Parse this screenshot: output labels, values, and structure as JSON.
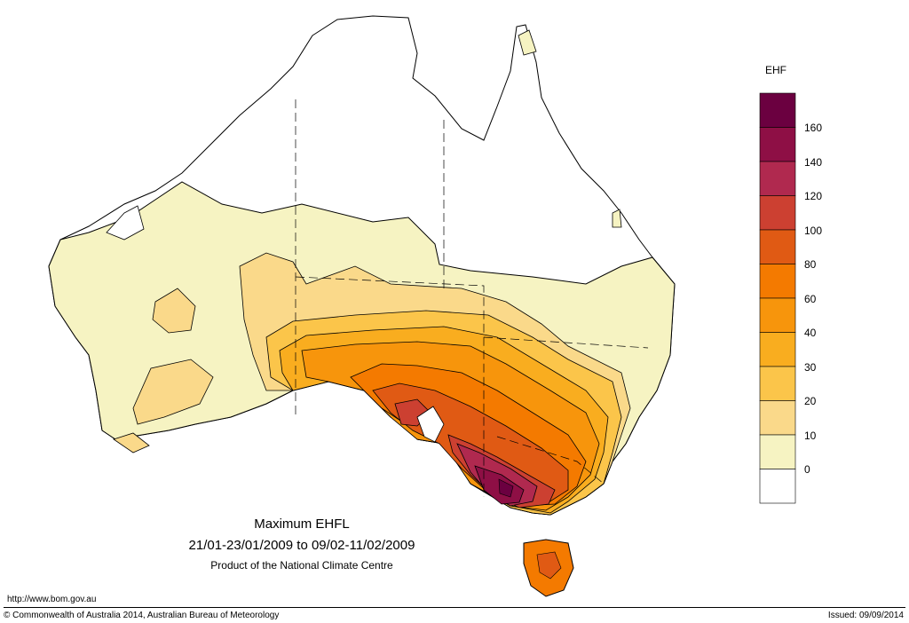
{
  "legend": {
    "title": "EHF",
    "labels": [
      "160",
      "140",
      "120",
      "100",
      "80",
      "60",
      "40",
      "30",
      "20",
      "10",
      "0"
    ],
    "colors": [
      "#6b0040",
      "#8e0f45",
      "#b0294f",
      "#cc4031",
      "#e05a14",
      "#f47a00",
      "#f7950c",
      "#f9ad1f",
      "#fbc54a",
      "#fad98a",
      "#f6f3c2",
      "#ffffff"
    ]
  },
  "titles": {
    "main": "Maximum EHFL",
    "period": "21/01-23/01/2009 to 09/02-11/02/2009",
    "product": "Product of the National Climate Centre"
  },
  "footer": {
    "url": "http://www.bom.gov.au",
    "copyright": "© Commonwealth of Australia 2014, Australian Bureau of Meteorology",
    "issued": "Issued: 09/09/2014"
  }
}
